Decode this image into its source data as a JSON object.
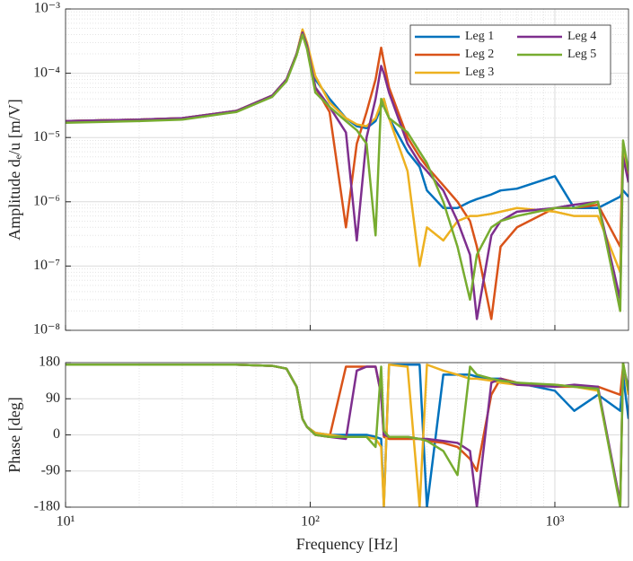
{
  "chart_data": [
    {
      "type": "line",
      "xscale": "log",
      "yscale": "log",
      "grid": true,
      "legend": "northeast",
      "y_label": "Amplitude dₑ/u [m/V]",
      "xlim": [
        10,
        2000
      ],
      "ylim": [
        1e-08,
        0.001
      ],
      "xticks": [
        {
          "value": 10,
          "label": "10¹"
        },
        {
          "value": 100,
          "label": "10²"
        },
        {
          "value": 1000,
          "label": "10³"
        }
      ],
      "yticks": [
        {
          "value": 1e-08,
          "label": "10⁻⁸"
        },
        {
          "value": 1e-07,
          "label": "10⁻⁷"
        },
        {
          "value": 1e-06,
          "label": "10⁻⁶"
        },
        {
          "value": 1e-05,
          "label": "10⁻⁵"
        },
        {
          "value": 0.0001,
          "label": "10⁻⁴"
        },
        {
          "value": 0.001,
          "label": "10⁻³"
        }
      ],
      "x": [
        10,
        20,
        30,
        50,
        70,
        80,
        88,
        93,
        97,
        105,
        120,
        140,
        155,
        170,
        185,
        195,
        200,
        210,
        250,
        280,
        300,
        350,
        400,
        450,
        480,
        550,
        600,
        700,
        1000,
        1200,
        1500,
        1850,
        1900,
        2000
      ],
      "series": [
        {
          "name": "Leg 1",
          "color": "#0072BD",
          "values": [
            1.8e-05,
            1.9e-05,
            2e-05,
            2.6e-05,
            4.5e-05,
            8e-05,
            0.0002,
            0.00045,
            0.00025,
            8e-05,
            4e-05,
            2e-05,
            1.5e-05,
            1.4e-05,
            1.8e-05,
            3e-05,
            4e-05,
            2e-05,
            6e-06,
            3.5e-06,
            1.5e-06,
            8e-07,
            8e-07,
            1e-06,
            1.1e-06,
            1.3e-06,
            1.5e-06,
            1.6e-06,
            2.5e-06,
            8e-07,
            8e-07,
            1.2e-06,
            1.5e-06,
            1.2e-06
          ]
        },
        {
          "name": "Leg 2",
          "color": "#D95319",
          "values": [
            1.8e-05,
            1.9e-05,
            2e-05,
            2.6e-05,
            4.5e-05,
            8e-05,
            0.0002,
            0.00042,
            0.00026,
            6e-05,
            2.5e-05,
            4e-07,
            8e-06,
            2.5e-05,
            8e-05,
            0.00025,
            0.00015,
            6e-05,
            1e-05,
            5e-06,
            3.5e-06,
            1.8e-06,
            1e-06,
            5e-07,
            2e-07,
            1.5e-08,
            2e-07,
            4e-07,
            8e-07,
            8e-07,
            9e-07,
            2e-07,
            8e-06,
            2e-06
          ]
        },
        {
          "name": "Leg 3",
          "color": "#EDB120",
          "values": [
            1.8e-05,
            1.9e-05,
            2e-05,
            2.6e-05,
            4.5e-05,
            8e-05,
            0.0002,
            0.00048,
            0.0003,
            9e-05,
            3.5e-05,
            2e-05,
            1.6e-05,
            1.5e-05,
            2e-05,
            3.5e-05,
            4e-05,
            2e-05,
            3e-06,
            1e-07,
            4e-07,
            2.5e-07,
            5e-07,
            6e-07,
            6e-07,
            6.5e-07,
            7e-07,
            8e-07,
            7e-07,
            6e-07,
            6e-07,
            8e-08,
            6e-06,
            2e-06
          ]
        },
        {
          "name": "Leg 4",
          "color": "#7E2F8E",
          "values": [
            1.8e-05,
            1.9e-05,
            2e-05,
            2.6e-05,
            4.5e-05,
            8e-05,
            0.0002,
            0.00043,
            0.00027,
            6e-05,
            3e-05,
            1.2e-05,
            2.5e-07,
            1e-05,
            4e-05,
            0.00013,
            0.0001,
            5e-05,
            8e-06,
            4e-06,
            3e-06,
            1.5e-06,
            5e-07,
            1.5e-07,
            1.5e-08,
            3e-07,
            5e-07,
            7e-07,
            8e-07,
            9e-07,
            1e-06,
            3e-08,
            5e-06,
            2e-06
          ]
        },
        {
          "name": "Leg 5",
          "color": "#77AC30",
          "values": [
            1.7e-05,
            1.8e-05,
            1.9e-05,
            2.5e-05,
            4.3e-05,
            7.5e-05,
            0.00019,
            0.0004,
            0.00024,
            5e-05,
            3e-05,
            1.8e-05,
            1.3e-05,
            8e-06,
            3e-07,
            4e-05,
            3e-05,
            2e-05,
            1.2e-05,
            6e-06,
            4e-06,
            1e-06,
            2e-07,
            3e-08,
            1.5e-07,
            4e-07,
            5e-07,
            6e-07,
            8e-07,
            8e-07,
            1e-06,
            2e-08,
            9e-06,
            3e-06
          ]
        }
      ]
    },
    {
      "type": "line",
      "xscale": "log",
      "grid": true,
      "y_label": "Phase [deg]",
      "x_label": "Frequency [Hz]",
      "xlim": [
        10,
        2000
      ],
      "ylim": [
        -180,
        180
      ],
      "xticks": [
        {
          "value": 10,
          "label": "10¹"
        },
        {
          "value": 100,
          "label": "10²"
        },
        {
          "value": 1000,
          "label": "10³"
        }
      ],
      "yticks": [
        -180,
        -90,
        0,
        90,
        180
      ],
      "x": [
        10,
        20,
        30,
        50,
        70,
        80,
        88,
        93,
        97,
        105,
        120,
        140,
        155,
        170,
        185,
        195,
        200,
        210,
        250,
        280,
        300,
        350,
        400,
        450,
        480,
        550,
        600,
        700,
        1000,
        1200,
        1500,
        1850,
        1900,
        2000
      ],
      "series": [
        {
          "name": "Leg 1",
          "color": "#0072BD",
          "values": [
            175,
            175,
            175,
            175,
            172,
            165,
            120,
            40,
            20,
            5,
            0,
            0,
            0,
            0,
            -5,
            -10,
            -175,
            175,
            175,
            175,
            -180,
            150,
            150,
            150,
            145,
            140,
            140,
            130,
            110,
            60,
            100,
            60,
            150,
            40
          ]
        },
        {
          "name": "Leg 2",
          "color": "#D95319",
          "values": [
            175,
            175,
            175,
            175,
            172,
            165,
            120,
            40,
            20,
            0,
            -5,
            170,
            170,
            170,
            170,
            100,
            -5,
            -10,
            -10,
            -10,
            -15,
            -20,
            -30,
            -60,
            -90,
            100,
            140,
            130,
            120,
            120,
            120,
            100,
            170,
            110
          ]
        },
        {
          "name": "Leg 3",
          "color": "#EDB120",
          "values": [
            175,
            175,
            175,
            175,
            172,
            165,
            120,
            40,
            20,
            5,
            0,
            -5,
            -5,
            -5,
            -10,
            -30,
            -180,
            175,
            170,
            -180,
            175,
            160,
            150,
            140,
            140,
            135,
            130,
            125,
            125,
            120,
            110,
            -170,
            180,
            100
          ]
        },
        {
          "name": "Leg 4",
          "color": "#7E2F8E",
          "values": [
            175,
            175,
            175,
            175,
            172,
            165,
            120,
            40,
            20,
            0,
            -5,
            -10,
            160,
            170,
            170,
            100,
            0,
            -5,
            -5,
            -10,
            -10,
            -15,
            -20,
            -40,
            -180,
            130,
            140,
            125,
            120,
            125,
            120,
            -170,
            170,
            120
          ]
        },
        {
          "name": "Leg 5",
          "color": "#77AC30",
          "values": [
            175,
            175,
            175,
            175,
            172,
            165,
            120,
            40,
            20,
            0,
            -5,
            -5,
            -5,
            -5,
            -30,
            170,
            10,
            -5,
            -5,
            -10,
            -15,
            -40,
            -100,
            170,
            150,
            140,
            135,
            130,
            125,
            120,
            115,
            -180,
            180,
            110
          ]
        }
      ]
    }
  ]
}
